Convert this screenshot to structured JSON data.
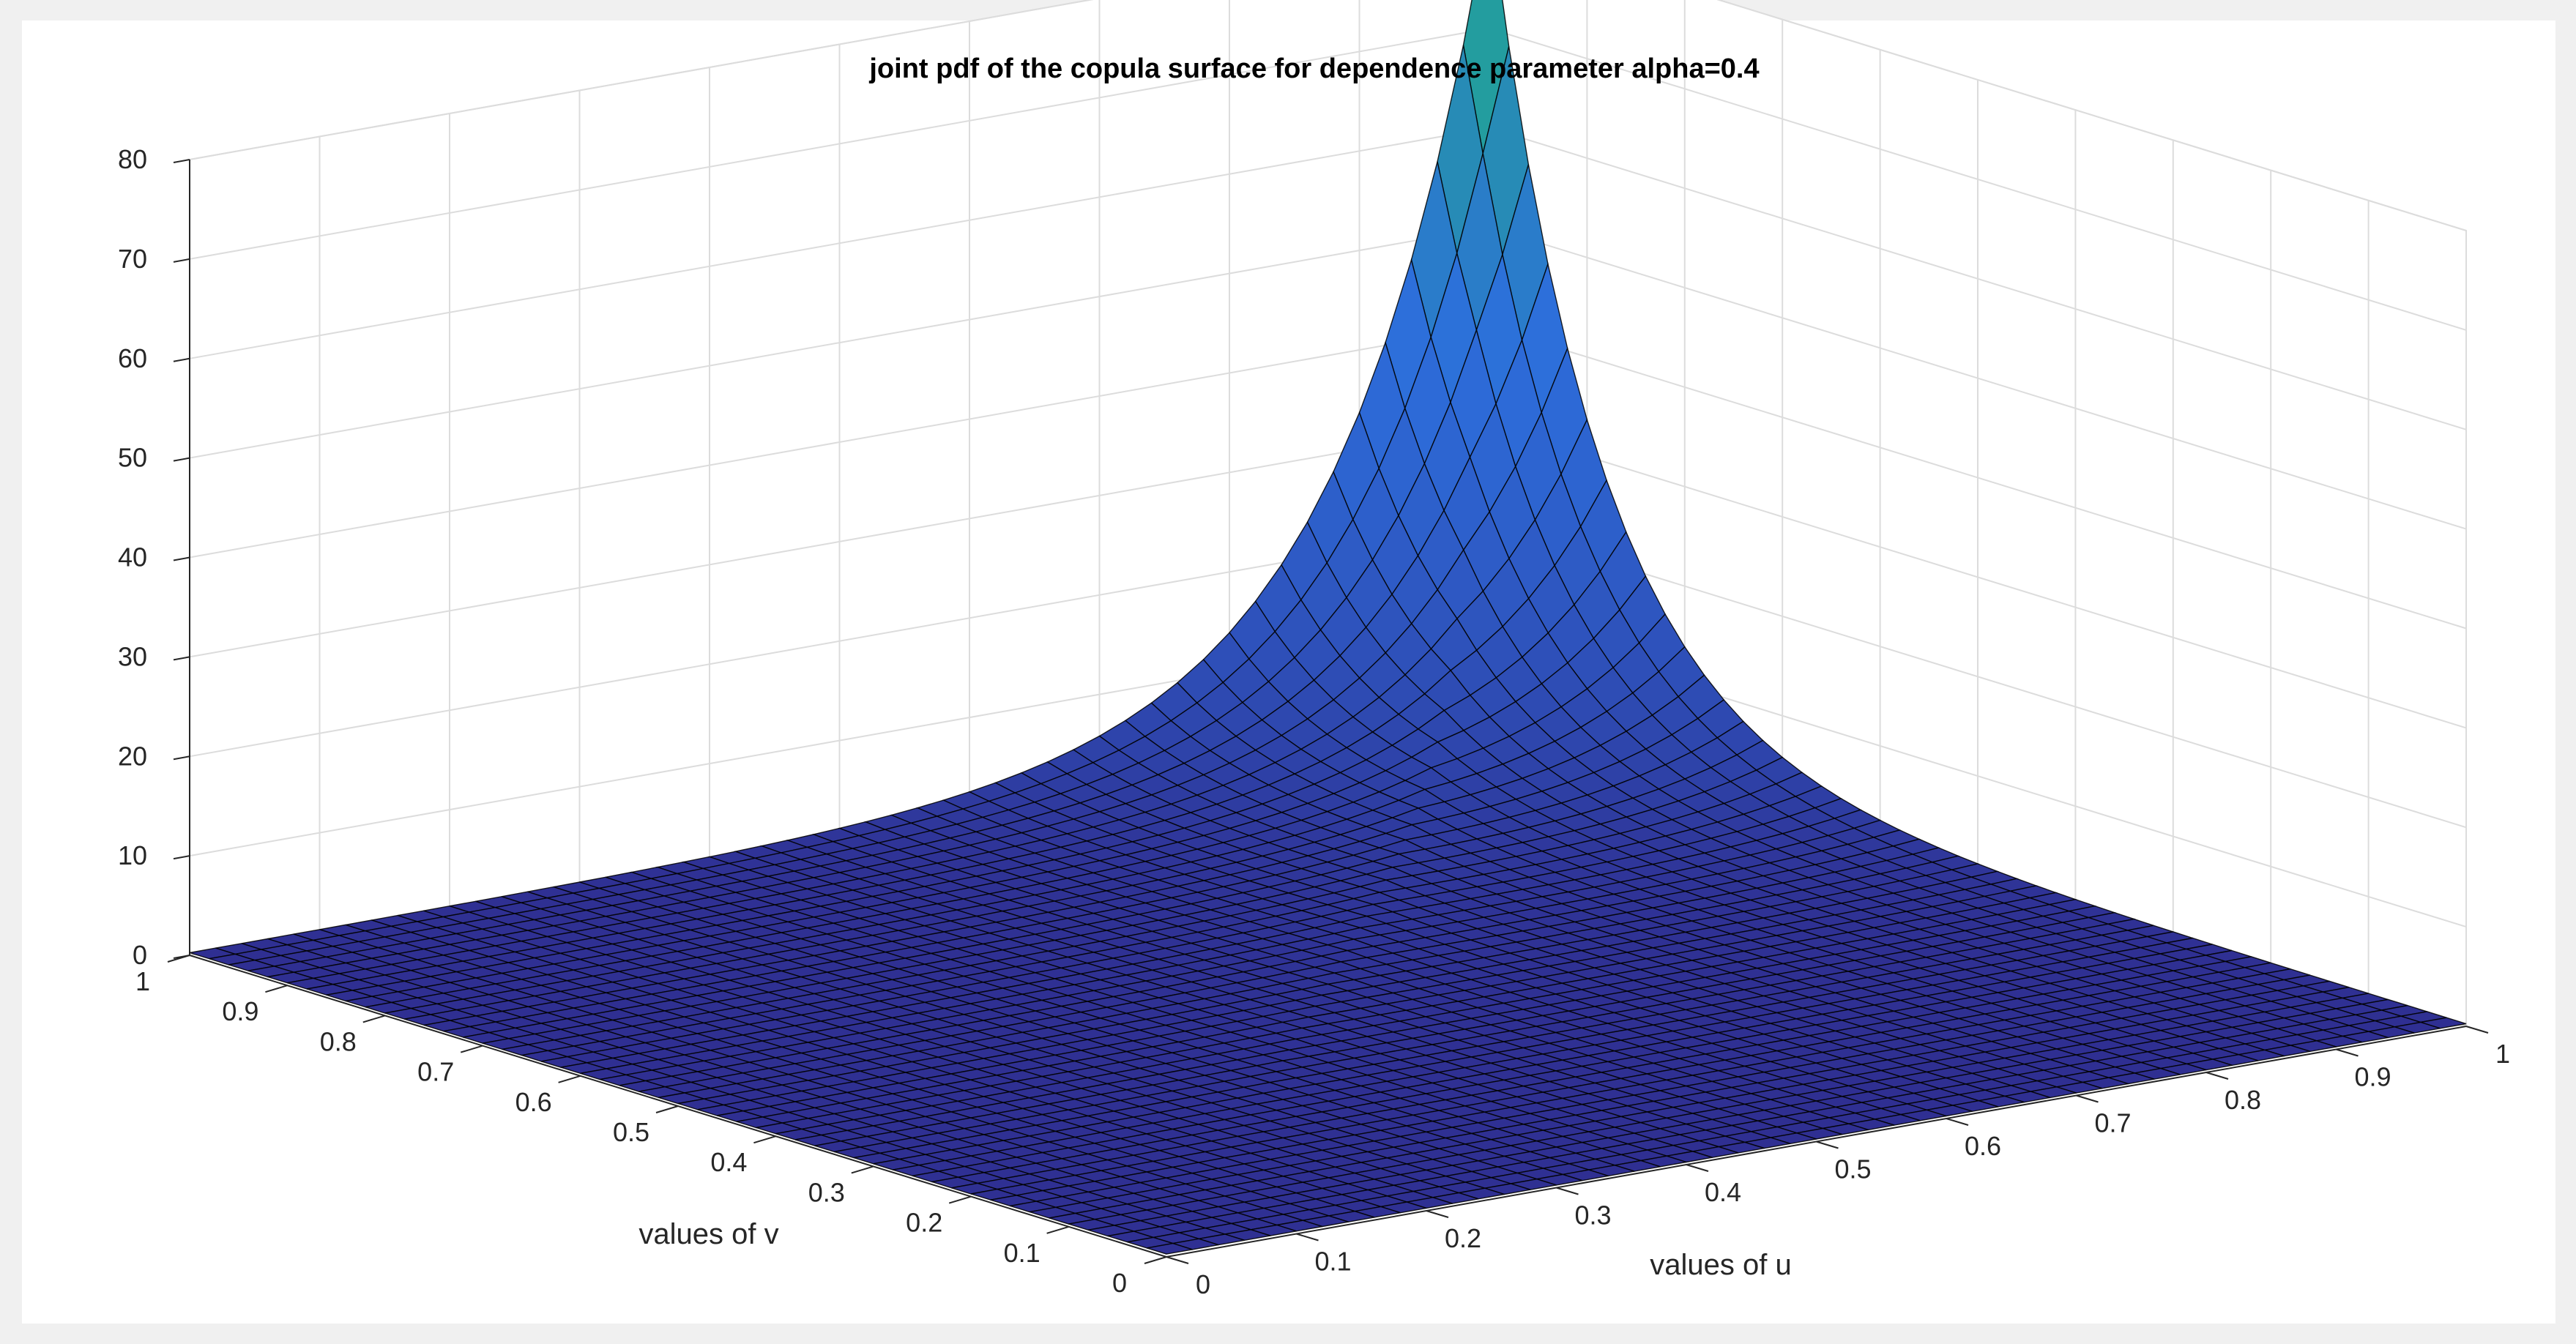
{
  "chart_data": {
    "type": "surface",
    "title": "joint pdf of the copula surface for dependence parameter alpha=0.4",
    "xlabel": "values of u",
    "ylabel": "values of v",
    "zlabel": "",
    "xlim": [
      0,
      1
    ],
    "ylim": [
      0,
      1
    ],
    "zlim": [
      0,
      80
    ],
    "x_ticks": [
      "0",
      "0.1",
      "0.2",
      "0.3",
      "0.4",
      "0.5",
      "0.6",
      "0.7",
      "0.8",
      "0.9",
      "1"
    ],
    "y_ticks": [
      "0",
      "0.1",
      "0.2",
      "0.3",
      "0.4",
      "0.5",
      "0.6",
      "0.7",
      "0.8",
      "0.9",
      "1"
    ],
    "z_ticks": [
      "0",
      "10",
      "20",
      "30",
      "40",
      "50",
      "60",
      "70",
      "80"
    ],
    "grid": true,
    "colormap": "winter-like (dark blue to green)",
    "edge_color": "#000000",
    "peak": {
      "u": 1,
      "v": 1,
      "z": 77
    },
    "colors": {
      "background": "#f0f0f0",
      "axes_face": "#ffffff",
      "grid": "#dcdcdc",
      "surface_low": "#2f2a8c",
      "surface_high": "#1fae8a"
    }
  }
}
